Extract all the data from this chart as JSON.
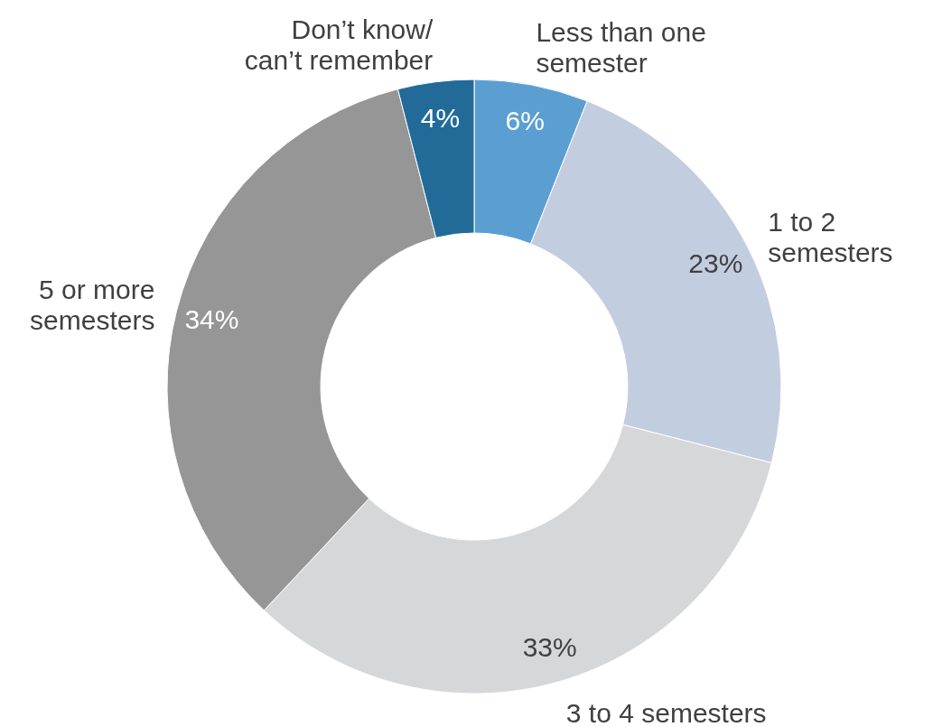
{
  "chart_data": {
    "type": "donut",
    "categories": [
      "Less than one semester",
      "1 to 2 semesters",
      "3 to 4 semesters",
      "5 or more semesters",
      "Don’t know/ can’t remember"
    ],
    "values": [
      6,
      23,
      33,
      34,
      4
    ],
    "colors": [
      "#5b9fd2",
      "#c3cde0",
      "#d6d7d9",
      "#969696",
      "#226b99"
    ],
    "value_labels": [
      "6%",
      "23%",
      "33%",
      "34%",
      "4%"
    ]
  }
}
